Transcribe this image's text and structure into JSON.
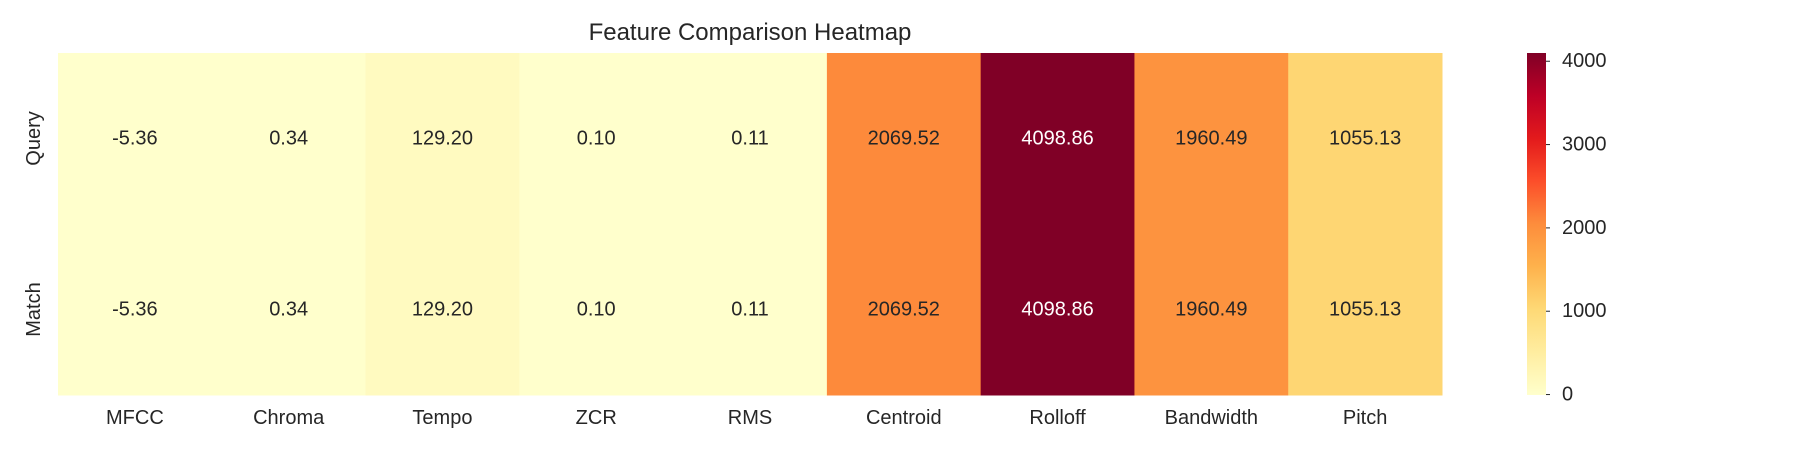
{
  "chart_data": {
    "type": "heatmap",
    "title": "Feature Comparison Heatmap",
    "xlabel": "",
    "ylabel": "",
    "columns": [
      "MFCC",
      "Chroma",
      "Tempo",
      "ZCR",
      "RMS",
      "Centroid",
      "Rolloff",
      "Bandwidth",
      "Pitch"
    ],
    "rows": [
      "Query",
      "Match"
    ],
    "values": [
      [
        -5.36,
        0.34,
        129.2,
        0.1,
        0.11,
        2069.52,
        4098.86,
        1960.49,
        1055.13
      ],
      [
        -5.36,
        0.34,
        129.2,
        0.1,
        0.11,
        2069.52,
        4098.86,
        1960.49,
        1055.13
      ]
    ],
    "value_labels": [
      [
        "-5.36",
        "0.34",
        "129.20",
        "0.10",
        "0.11",
        "2069.52",
        "4098.86",
        "1960.49",
        "1055.13"
      ],
      [
        "-5.36",
        "0.34",
        "129.20",
        "0.10",
        "0.11",
        "2069.52",
        "4098.86",
        "1960.49",
        "1055.13"
      ]
    ],
    "colormap": "YlOrRd",
    "color_range": [
      -5.36,
      4098.86
    ],
    "colorbar_ticks": [
      0,
      1000,
      2000,
      3000,
      4000
    ],
    "colorbar_tick_labels": [
      "0",
      "1000",
      "2000",
      "3000",
      "4000"
    ],
    "colorbar_placement": "right",
    "grid": false
  }
}
